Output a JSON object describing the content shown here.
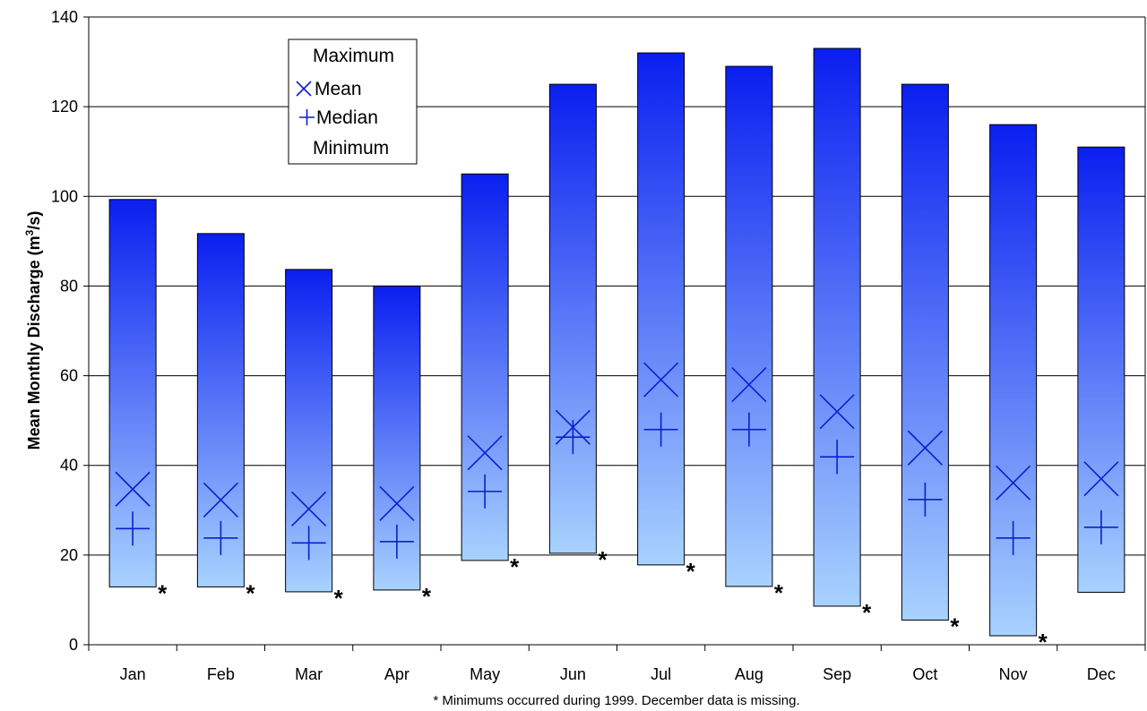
{
  "chart_data": {
    "type": "bar",
    "ylabel_main": "Mean Monthly Discharge (m",
    "ylabel_sup": "3",
    "ylabel_tail": "/s)",
    "ylim": [
      0,
      140
    ],
    "yticks": [
      "0",
      "20",
      "40",
      "60",
      "80",
      "100",
      "120",
      "140"
    ],
    "categories": [
      "Jan",
      "Feb",
      "Mar",
      "Apr",
      "May",
      "Jun",
      "Jul",
      "Aug",
      "Sep",
      "Oct",
      "Nov",
      "Dec"
    ],
    "series": [
      {
        "name": "Maximum",
        "values": [
          99.3,
          91.7,
          83.7,
          80.0,
          105.0,
          125.0,
          132.0,
          129.0,
          133.0,
          125.0,
          116.0,
          111.0
        ]
      },
      {
        "name": "Mean",
        "values": [
          34.7,
          32.3,
          30.3,
          31.5,
          42.8,
          48.5,
          59.1,
          58.0,
          52.0,
          43.9,
          36.1,
          37.0
        ]
      },
      {
        "name": "Median",
        "values": [
          25.9,
          23.8,
          22.7,
          23.0,
          34.2,
          46.3,
          48.0,
          48.0,
          41.9,
          32.4,
          23.8,
          26.2
        ]
      },
      {
        "name": "Minimum",
        "values": [
          12.9,
          12.9,
          11.8,
          12.2,
          18.8,
          20.4,
          17.8,
          13.0,
          8.6,
          5.5,
          2.0,
          11.7
        ]
      }
    ],
    "minimum_markers": [
      "*",
      "*",
      "*",
      "*",
      "*",
      "*",
      "*",
      "*",
      "*",
      "*",
      "*",
      ""
    ],
    "footnote": "* Minimums occurred during 1999.  December data is missing.",
    "legend_position": "top-left",
    "grid": true,
    "colors": {
      "bar_top": "#0a1ff0",
      "bar_bottom": "#a8d2ff",
      "marker": "#0a1fd0"
    }
  }
}
